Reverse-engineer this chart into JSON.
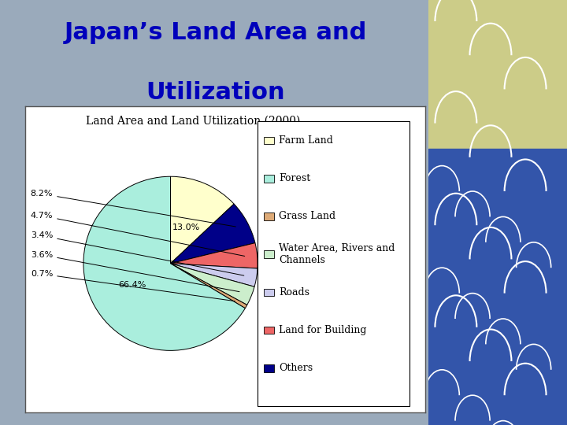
{
  "title_line1": "Japan’s Land Area and",
  "title_line2": "Utilization",
  "chart_title": "Land Area and Land Utilization (2000)",
  "labels": [
    "Farm Land",
    "Forest",
    "Grass Land",
    "Water Area, Rivers and\nChannels",
    "Roads",
    "Land for Building",
    "Others"
  ],
  "values": [
    13.0,
    66.4,
    0.7,
    3.6,
    3.4,
    4.7,
    8.2
  ],
  "colors": [
    "#FFFFCC",
    "#AAEEDD",
    "#DDAA77",
    "#CCEECC",
    "#CCCCEE",
    "#EE6666",
    "#000088"
  ],
  "bg_color": "#9AAABB",
  "box_bg": "#FFFFFF",
  "title_color": "#0000BB",
  "title_fontsize": 22,
  "chart_title_fontsize": 10,
  "legend_fontsize": 9,
  "pct_fontsize": 8,
  "wedge_order": [
    0,
    6,
    5,
    4,
    3,
    2,
    1
  ],
  "pct_labels_left": [
    "8.2%",
    "4.7%",
    "3.4%",
    "3.6%",
    "0.7%"
  ],
  "pct_inside": {
    "farm": "13.0%",
    "forest": "66.4%"
  },
  "wave_colors": [
    "#CCDDBB",
    "#4466BB",
    "#FFFFFF"
  ]
}
